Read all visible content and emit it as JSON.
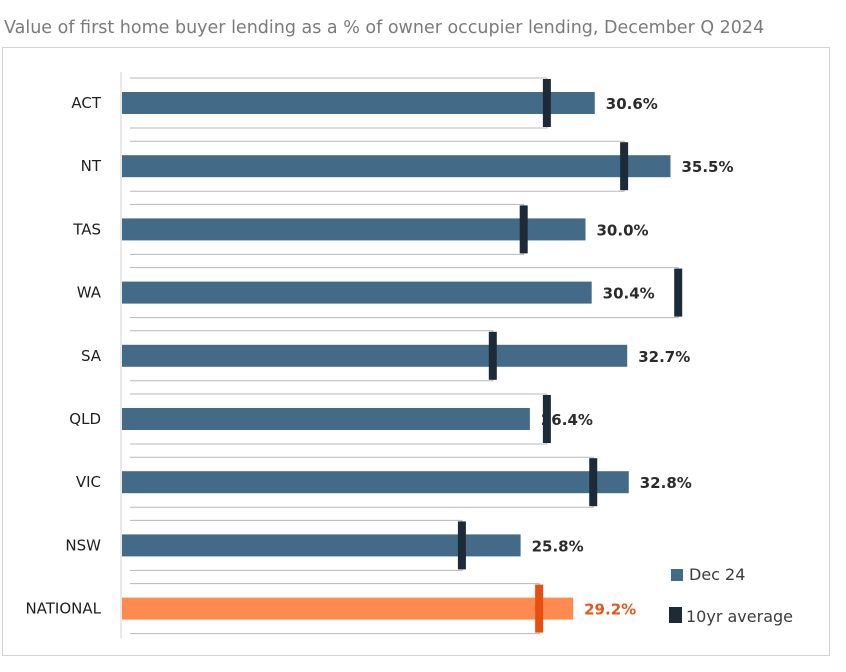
{
  "chart_data": {
    "type": "bar",
    "title": "Value of first home buyer lending as a % of owner occupier lending, December Q 2024",
    "categories": [
      "ACT",
      "NT",
      "TAS",
      "WA",
      "SA",
      "QLD",
      "VIC",
      "NSW",
      "NATIONAL"
    ],
    "series": [
      {
        "name": "Dec 24",
        "values": [
          30.6,
          35.5,
          30.0,
          30.4,
          32.7,
          26.4,
          32.8,
          25.8,
          29.2
        ],
        "value_labels": [
          "30.6%",
          "35.5%",
          "30.0%",
          "30.4%",
          "32.7%",
          "26.4%",
          "32.8%",
          "25.8%",
          "29.2%"
        ]
      },
      {
        "name": "10yr average",
        "values": [
          27.5,
          32.5,
          26.0,
          36.0,
          24.0,
          27.5,
          30.5,
          22.0,
          27.0
        ]
      }
    ],
    "xlim": [
      0,
      45
    ],
    "grid": false,
    "legend_position": "bottom-right",
    "colors": {
      "bar": "#436a86",
      "bar_national": "#ff8a50",
      "marker": "#1d2b38",
      "marker_national": "#e84e0f",
      "label_national": "#e2581f"
    }
  }
}
